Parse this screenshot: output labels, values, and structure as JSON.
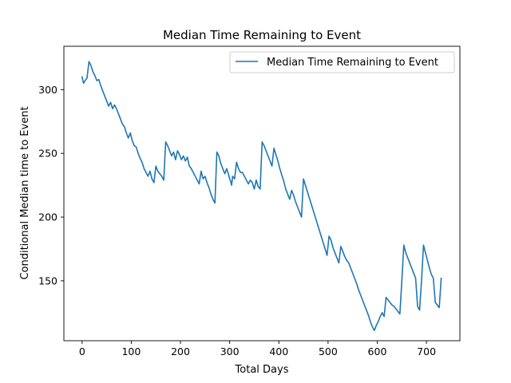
{
  "chart_data": {
    "type": "line",
    "title": "Median Time Remaining to Event",
    "xlabel": "Total Days",
    "ylabel": "Conditional Median time to Event",
    "xlim": [
      -37,
      768
    ],
    "ylim": [
      103,
      334
    ],
    "xticks": [
      0,
      100,
      200,
      300,
      400,
      500,
      600,
      700
    ],
    "yticks": [
      150,
      200,
      250,
      300
    ],
    "grid": false,
    "legend_position": "top-right",
    "series": [
      {
        "name": "Median Time Remaining to Event",
        "color": "#1f77b4",
        "x": [
          0,
          3,
          6,
          10,
          14,
          18,
          22,
          26,
          30,
          34,
          38,
          42,
          46,
          50,
          54,
          58,
          62,
          66,
          70,
          74,
          78,
          82,
          86,
          90,
          94,
          98,
          102,
          106,
          110,
          114,
          118,
          122,
          126,
          130,
          134,
          138,
          142,
          146,
          150,
          154,
          158,
          162,
          166,
          170,
          174,
          178,
          182,
          186,
          190,
          194,
          198,
          202,
          206,
          210,
          214,
          218,
          222,
          226,
          230,
          234,
          238,
          242,
          246,
          250,
          254,
          258,
          262,
          266,
          270,
          274,
          278,
          282,
          286,
          290,
          294,
          298,
          300,
          302,
          304,
          306,
          310,
          314,
          318,
          322,
          326,
          330,
          334,
          338,
          342,
          346,
          350,
          354,
          358,
          362,
          366,
          370,
          374,
          378,
          382,
          386,
          390,
          394,
          398,
          402,
          406,
          410,
          414,
          418,
          422,
          426,
          430,
          434,
          438,
          442,
          446,
          450,
          454,
          458,
          462,
          466,
          470,
          474,
          478,
          482,
          486,
          490,
          494,
          498,
          502,
          506,
          510,
          514,
          518,
          522,
          526,
          530,
          534,
          538,
          542,
          546,
          550,
          554,
          558,
          562,
          566,
          570,
          574,
          578,
          582,
          586,
          590,
          594,
          598,
          602,
          606,
          610,
          614,
          618,
          622,
          626,
          630,
          634,
          638,
          642,
          646,
          650,
          654,
          658,
          662,
          666,
          670,
          674,
          678,
          682,
          686,
          690,
          694,
          698,
          702,
          706,
          710,
          714,
          718,
          722,
          726,
          730
        ],
        "y": [
          310,
          305,
          307,
          309,
          322,
          319,
          314,
          311,
          307,
          308,
          303,
          299,
          295,
          291,
          287,
          290,
          285,
          288,
          285,
          281,
          277,
          273,
          271,
          266,
          262,
          266,
          260,
          256,
          255,
          250,
          246,
          243,
          238,
          235,
          232,
          236,
          230,
          227,
          240,
          236,
          234,
          232,
          229,
          259,
          256,
          252,
          248,
          251,
          245,
          252,
          249,
          245,
          248,
          244,
          247,
          240,
          238,
          235,
          232,
          229,
          226,
          236,
          230,
          232,
          227,
          223,
          218,
          214,
          211,
          251,
          248,
          242,
          238,
          234,
          238,
          233,
          230,
          228,
          225,
          232,
          230,
          243,
          238,
          235,
          235,
          232,
          229,
          226,
          229,
          227,
          222,
          229,
          224,
          222,
          259,
          256,
          252,
          248,
          244,
          240,
          254,
          249,
          244,
          238,
          233,
          228,
          222,
          218,
          214,
          221,
          217,
          212,
          208,
          204,
          200,
          230,
          225,
          220,
          215,
          210,
          205,
          200,
          195,
          190,
          185,
          180,
          175,
          170,
          185,
          182,
          176,
          172,
          168,
          164,
          177,
          173,
          169,
          166,
          164,
          160,
          156,
          152,
          148,
          143,
          139,
          135,
          131,
          127,
          123,
          118,
          114,
          111,
          115,
          118,
          122,
          125,
          122,
          137,
          135,
          133,
          131,
          130,
          128,
          126,
          124,
          150,
          178,
          172,
          168,
          164,
          160,
          156,
          152,
          130,
          127,
          150,
          178,
          172,
          166,
          160,
          155,
          152,
          133,
          131,
          129,
          152
        ]
      }
    ]
  }
}
